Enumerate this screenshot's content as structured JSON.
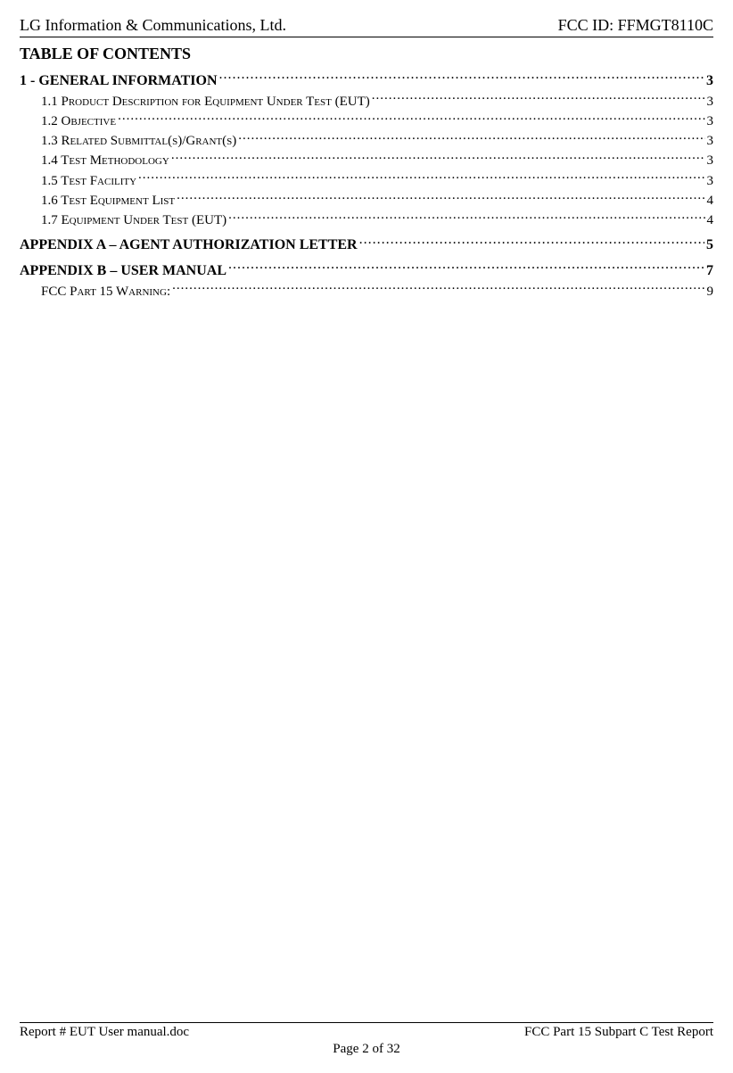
{
  "header": {
    "left": "LG Information & Communications, Ltd.",
    "right": "FCC ID: FFMGT8110C"
  },
  "toc_title": "TABLE OF CONTENTS",
  "entries": [
    {
      "label": "1 - GENERAL INFORMATION",
      "page": "3",
      "bold": true,
      "sub": false,
      "spaced": false
    },
    {
      "label": "1.1 Product Description for Equipment Under Test (EUT)",
      "page": "3",
      "bold": false,
      "sub": true,
      "spaced": false
    },
    {
      "label": "1.2 Objective",
      "page": "3",
      "bold": false,
      "sub": true,
      "spaced": false
    },
    {
      "label": "1.3 Related Submittal(s)/Grant(s)",
      "page": "3",
      "bold": false,
      "sub": true,
      "spaced": false
    },
    {
      "label": "1.4 Test Methodology",
      "page": "3",
      "bold": false,
      "sub": true,
      "spaced": false
    },
    {
      "label": "1.5 Test Facility",
      "page": "3",
      "bold": false,
      "sub": true,
      "spaced": false
    },
    {
      "label": "1.6 Test Equipment List",
      "page": "4",
      "bold": false,
      "sub": true,
      "spaced": false
    },
    {
      "label": "1.7 Equipment Under Test (EUT)",
      "page": "4",
      "bold": false,
      "sub": true,
      "spaced": false
    },
    {
      "label": "APPENDIX A – AGENT AUTHORIZATION LETTER",
      "page": "5",
      "bold": true,
      "sub": false,
      "spaced": true
    },
    {
      "label": "APPENDIX B – USER MANUAL",
      "page": "7",
      "bold": true,
      "sub": false,
      "spaced": true
    },
    {
      "label": "FCC Part 15 Warning:",
      "page": "9",
      "bold": false,
      "sub": true,
      "spaced": false
    }
  ],
  "footer": {
    "left": "Report # EUT User manual.doc",
    "right": "FCC Part 15 Subpart C Test Report",
    "center": "Page 2 of 32"
  }
}
